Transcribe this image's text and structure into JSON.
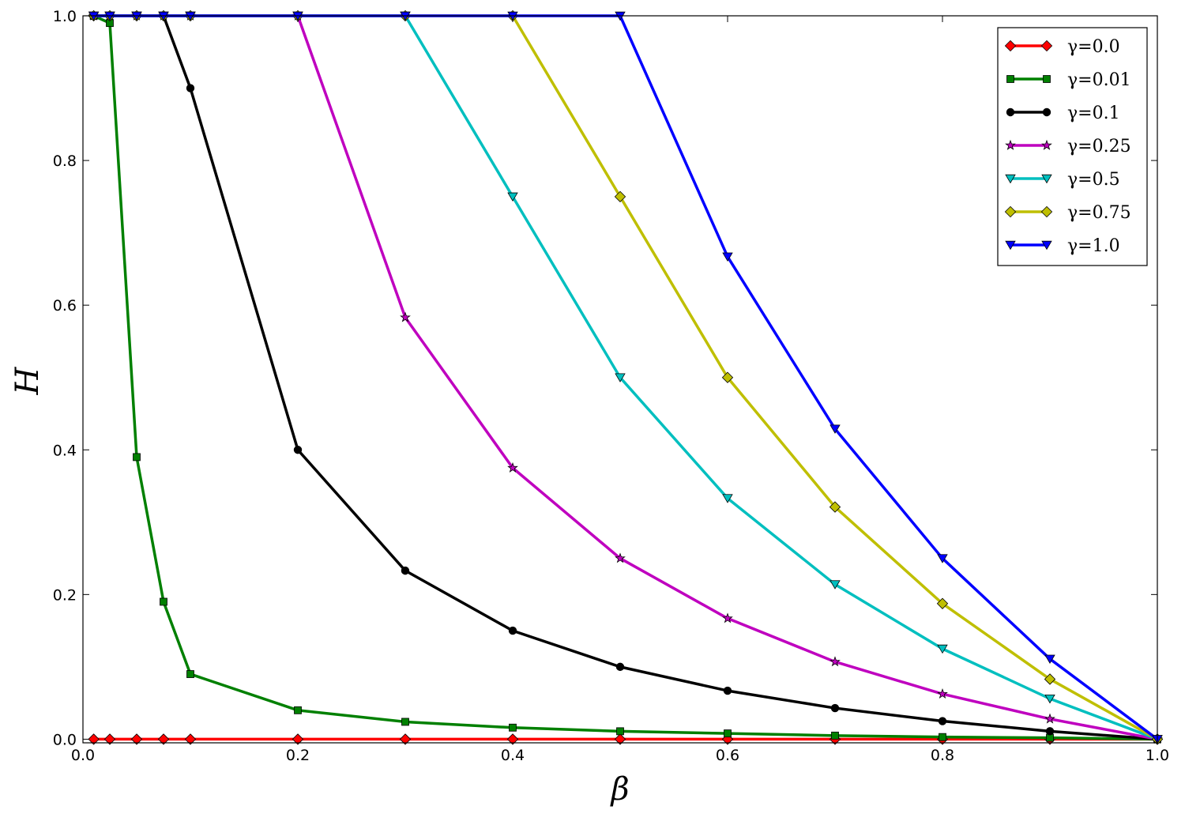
{
  "chart_data": {
    "type": "line",
    "xlabel": "β",
    "ylabel": "H",
    "x": [
      0.01,
      0.025,
      0.05,
      0.075,
      0.1,
      0.2,
      0.3,
      0.4,
      0.5,
      0.6,
      0.7,
      0.8,
      0.9,
      1.0
    ],
    "xlim": [
      0,
      1.0
    ],
    "ylim": [
      -0.005,
      1.0
    ],
    "xticks": [
      {
        "value": 0,
        "label": "0.0"
      },
      {
        "value": 0.2,
        "label": "0.2"
      },
      {
        "value": 0.4,
        "label": "0.4"
      },
      {
        "value": 0.6,
        "label": "0.6"
      },
      {
        "value": 0.8,
        "label": "0.8"
      },
      {
        "value": 1.0,
        "label": "1.0"
      }
    ],
    "yticks": [
      {
        "value": 0,
        "label": "0.0"
      },
      {
        "value": 0.2,
        "label": "0.2"
      },
      {
        "value": 0.4,
        "label": "0.4"
      },
      {
        "value": 0.6,
        "label": "0.6"
      },
      {
        "value": 0.8,
        "label": "0.8"
      },
      {
        "value": 1.0,
        "label": "1.0"
      }
    ],
    "legend": "upper right",
    "series": [
      {
        "name": "γ=0.0",
        "color": "#ff0000",
        "marker": "diamond",
        "values": [
          0,
          0,
          0,
          0,
          0,
          0,
          0,
          0,
          0,
          0,
          0,
          0,
          0,
          0
        ]
      },
      {
        "name": "γ=0.01",
        "color": "#008000",
        "marker": "square",
        "values": [
          1.0,
          0.99,
          0.39,
          0.19,
          0.09,
          0.04,
          0.024,
          0.016,
          0.011,
          0.008,
          0.005,
          0.003,
          0.002,
          0
        ]
      },
      {
        "name": "γ=0.1",
        "color": "#000000",
        "marker": "circle",
        "values": [
          1.0,
          1.0,
          1.0,
          1.0,
          0.9,
          0.4,
          0.233,
          0.15,
          0.1,
          0.067,
          0.043,
          0.025,
          0.011,
          0
        ]
      },
      {
        "name": "γ=0.25",
        "color": "#bf00bf",
        "marker": "star",
        "values": [
          1.0,
          1.0,
          1.0,
          1.0,
          1.0,
          1.0,
          0.583,
          0.375,
          0.25,
          0.167,
          0.107,
          0.0625,
          0.028,
          0
        ]
      },
      {
        "name": "γ=0.5",
        "color": "#00bfbf",
        "marker": "triangle-down",
        "values": [
          1.0,
          1.0,
          1.0,
          1.0,
          1.0,
          1.0,
          1.0,
          0.75,
          0.5,
          0.333,
          0.214,
          0.125,
          0.056,
          0
        ]
      },
      {
        "name": "γ=0.75",
        "color": "#bfbf00",
        "marker": "diamond",
        "values": [
          1.0,
          1.0,
          1.0,
          1.0,
          1.0,
          1.0,
          1.0,
          1.0,
          0.75,
          0.5,
          0.321,
          0.1875,
          0.083,
          0
        ]
      },
      {
        "name": "γ=1.0",
        "color": "#0000ff",
        "marker": "triangle-down",
        "values": [
          1.0,
          1.0,
          1.0,
          1.0,
          1.0,
          1.0,
          1.0,
          1.0,
          1.0,
          0.667,
          0.429,
          0.25,
          0.111,
          0
        ]
      }
    ]
  }
}
